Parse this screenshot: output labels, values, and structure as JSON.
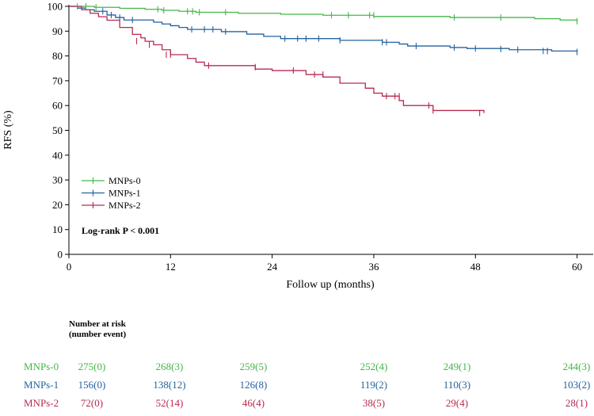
{
  "chart_data": {
    "type": "line",
    "chart_kind": "kaplan-meier step survival curves with censor marks",
    "xlabel": "Follow up (months)",
    "ylabel": "RFS (%)",
    "xlim": [
      0,
      62
    ],
    "ylim": [
      0,
      100
    ],
    "x_ticks": [
      0,
      12,
      24,
      36,
      48,
      60
    ],
    "y_ticks": [
      0,
      10,
      20,
      30,
      40,
      50,
      60,
      70,
      80,
      90,
      100
    ],
    "grid": false,
    "legend_position": "lower-left",
    "annotation": "Log-rank P < 0.001",
    "series": [
      {
        "name": "MNPs-0",
        "color": "#43b649",
        "steps": [
          [
            0,
            100
          ],
          [
            3,
            99.6
          ],
          [
            6,
            99.2
          ],
          [
            9,
            98.8
          ],
          [
            11,
            98.4
          ],
          [
            13,
            98
          ],
          [
            15,
            97.6
          ],
          [
            20,
            97.2
          ],
          [
            25,
            96.8
          ],
          [
            30,
            96.4
          ],
          [
            36,
            95.9
          ],
          [
            45,
            95.5
          ],
          [
            55,
            95
          ],
          [
            58,
            94.5
          ],
          [
            60,
            94
          ]
        ],
        "censored": [
          [
            1,
            100
          ],
          [
            2,
            100
          ],
          [
            3.2,
            99.6
          ],
          [
            10.5,
            98.8
          ],
          [
            11.2,
            98.4
          ],
          [
            14,
            98
          ],
          [
            14.6,
            98
          ],
          [
            15.4,
            97.6
          ],
          [
            18.5,
            97.6
          ],
          [
            31,
            96.4
          ],
          [
            33,
            96.4
          ],
          [
            35.5,
            96.4
          ],
          [
            36,
            96.4
          ],
          [
            45.5,
            95.5
          ],
          [
            51,
            95.5
          ],
          [
            60,
            94
          ]
        ]
      },
      {
        "name": "MNPs-1",
        "color": "#24629e",
        "steps": [
          [
            0,
            100
          ],
          [
            1,
            99.3
          ],
          [
            2,
            98.6
          ],
          [
            3,
            98
          ],
          [
            4.5,
            96.5
          ],
          [
            5.5,
            95.5
          ],
          [
            6.5,
            94.5
          ],
          [
            10,
            93.6
          ],
          [
            11,
            92.9
          ],
          [
            12,
            92.2
          ],
          [
            13,
            91.5
          ],
          [
            14,
            90.7
          ],
          [
            18,
            89.8
          ],
          [
            21,
            88.8
          ],
          [
            23,
            87.9
          ],
          [
            25,
            87
          ],
          [
            32,
            86.3
          ],
          [
            37,
            85.5
          ],
          [
            39,
            84.8
          ],
          [
            40,
            84
          ],
          [
            45,
            83.4
          ],
          [
            47,
            83
          ],
          [
            52,
            82.5
          ],
          [
            57,
            82
          ],
          [
            60,
            81.6
          ]
        ],
        "censored": [
          [
            4,
            98
          ],
          [
            5,
            96.5
          ],
          [
            6,
            95.5
          ],
          [
            7.5,
            94.5
          ],
          [
            14.5,
            90.7
          ],
          [
            16,
            90.7
          ],
          [
            17,
            90.7
          ],
          [
            18.5,
            89.8
          ],
          [
            25.5,
            87
          ],
          [
            27,
            87
          ],
          [
            28,
            87
          ],
          [
            29.5,
            87
          ],
          [
            32,
            86.3
          ],
          [
            37,
            85.5
          ],
          [
            37.5,
            85.5
          ],
          [
            41,
            84
          ],
          [
            45.5,
            83.4
          ],
          [
            48,
            83
          ],
          [
            51,
            82.8
          ],
          [
            53,
            82.5
          ],
          [
            56,
            82
          ],
          [
            56.5,
            82
          ],
          [
            60,
            81.6
          ]
        ]
      },
      {
        "name": "MNPs-2",
        "color": "#b82a50",
        "steps": [
          [
            0,
            100
          ],
          [
            1.5,
            98.6
          ],
          [
            2.5,
            97.2
          ],
          [
            3.5,
            95.8
          ],
          [
            4.5,
            94.4
          ],
          [
            6,
            91.5
          ],
          [
            7.5,
            88.7
          ],
          [
            8.5,
            87.3
          ],
          [
            9,
            85.9
          ],
          [
            10,
            84.5
          ],
          [
            11,
            82.5
          ],
          [
            12,
            80.5
          ],
          [
            14,
            79
          ],
          [
            15,
            77.5
          ],
          [
            16,
            76.1
          ],
          [
            22,
            74.7
          ],
          [
            24,
            74.1
          ],
          [
            28,
            72.5
          ],
          [
            30,
            71.5
          ],
          [
            32,
            69
          ],
          [
            35,
            67
          ],
          [
            36,
            65
          ],
          [
            37,
            63.8
          ],
          [
            39,
            62
          ],
          [
            39.5,
            60
          ],
          [
            43,
            58
          ],
          [
            49,
            57
          ]
        ],
        "censored": [
          [
            8,
            86
          ],
          [
            9.5,
            84.5
          ],
          [
            11.5,
            80.5
          ],
          [
            12,
            80.5
          ],
          [
            16.5,
            76.1
          ],
          [
            22,
            75.5
          ],
          [
            26.5,
            74.1
          ],
          [
            29,
            72.5
          ],
          [
            30,
            72.5
          ],
          [
            37.5,
            63.8
          ],
          [
            38.5,
            63.8
          ],
          [
            39,
            63.8
          ],
          [
            42.5,
            60
          ],
          [
            43,
            58
          ],
          [
            48.5,
            57
          ]
        ]
      }
    ],
    "risk_table": {
      "header": [
        "Number at risk",
        "(number event)"
      ],
      "time_points": [
        0,
        12,
        24,
        36,
        48,
        60
      ],
      "rows": [
        {
          "name": "MNPs-0",
          "color": "#43b649",
          "values": [
            "275(0)",
            "268(3)",
            "259(5)",
            "252(4)",
            "249(1)",
            "244(3)"
          ]
        },
        {
          "name": "MNPs-1",
          "color": "#24629e",
          "values": [
            "156(0)",
            "138(12)",
            "126(8)",
            "119(2)",
            "110(3)",
            "103(2)"
          ]
        },
        {
          "name": "MNPs-2",
          "color": "#b82a50",
          "values": [
            "72(0)",
            "52(14)",
            "46(4)",
            "38(5)",
            "29(4)",
            "28(1)"
          ]
        }
      ]
    }
  }
}
